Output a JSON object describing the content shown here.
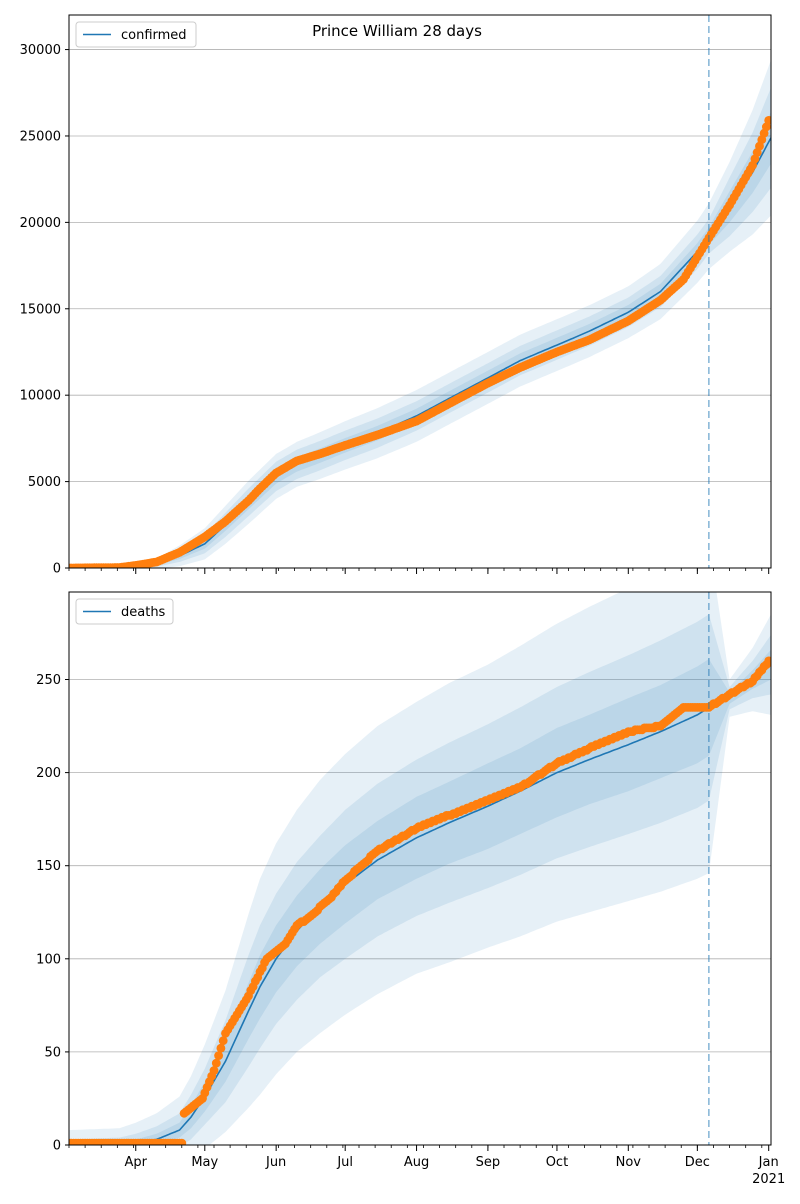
{
  "title": "Prince William 28 days",
  "year_label": "2021",
  "month_labels": [
    "Apr",
    "May",
    "Jun",
    "Jul",
    "Aug",
    "Sep",
    "Oct",
    "Nov",
    "Dec",
    "Jan"
  ],
  "colors": {
    "line": "#1f77b4",
    "band": "#1f77b4",
    "points": "#ff7f0e",
    "vline": "#1f77b4",
    "grid": "#b0b0b0"
  },
  "chart_data": [
    {
      "type": "line",
      "name": "confirmed",
      "legend": "confirmed",
      "legend_placement": "top-left",
      "grid": "horizontal",
      "xlim": [
        "2020-03-03",
        "2021-01-02"
      ],
      "ylim": [
        0,
        32000
      ],
      "yticks": [
        0,
        5000,
        10000,
        15000,
        20000,
        25000,
        30000
      ],
      "forecast_start": "2020-12-06",
      "model_x": [
        "2020-03-03",
        "2020-03-20",
        "2020-04-01",
        "2020-04-10",
        "2020-04-20",
        "2020-05-01",
        "2020-05-10",
        "2020-05-20",
        "2020-06-01",
        "2020-06-10",
        "2020-06-20",
        "2020-07-01",
        "2020-07-15",
        "2020-08-01",
        "2020-08-15",
        "2020-09-01",
        "2020-09-15",
        "2020-10-01",
        "2020-10-15",
        "2020-11-01",
        "2020-11-15",
        "2020-12-01",
        "2020-12-06",
        "2020-12-15",
        "2020-12-25",
        "2021-01-02"
      ],
      "model_y": [
        0,
        20,
        100,
        250,
        700,
        1400,
        2500,
        3800,
        5300,
        6000,
        6500,
        7100,
        7800,
        8800,
        9800,
        11000,
        12000,
        12900,
        13700,
        14800,
        16000,
        18300,
        19200,
        20900,
        22900,
        24900
      ],
      "band_widths": [
        [
          0,
          50,
          150,
          300,
          600,
          900,
          1100,
          1250,
          1300,
          1300,
          1350,
          1400,
          1450,
          1500,
          1500,
          1500,
          1500,
          1500,
          1500,
          1500,
          1600,
          1800,
          1900,
          2600,
          3600,
          4500
        ],
        [
          0,
          30,
          90,
          180,
          350,
          550,
          700,
          800,
          850,
          850,
          850,
          850,
          850,
          850,
          850,
          850,
          850,
          850,
          850,
          850,
          900,
          1000,
          1000,
          1700,
          2300,
          2900
        ],
        [
          0,
          15,
          40,
          90,
          180,
          280,
          350,
          400,
          420,
          420,
          420,
          420,
          420,
          420,
          420,
          420,
          420,
          420,
          420,
          420,
          450,
          500,
          500,
          900,
          1200,
          1500
        ]
      ],
      "observed_x": [
        "2020-03-03",
        "2020-03-25",
        "2020-04-01",
        "2020-04-10",
        "2020-04-20",
        "2020-05-01",
        "2020-05-10",
        "2020-05-20",
        "2020-05-25",
        "2020-06-01",
        "2020-06-10",
        "2020-06-20",
        "2020-07-01",
        "2020-07-15",
        "2020-08-01",
        "2020-08-15",
        "2020-09-01",
        "2020-09-15",
        "2020-10-01",
        "2020-10-15",
        "2020-11-01",
        "2020-11-15",
        "2020-11-25",
        "2020-12-01",
        "2020-12-06",
        "2020-12-15",
        "2020-12-25",
        "2021-01-01"
      ],
      "observed_y": [
        0,
        30,
        150,
        350,
        900,
        1800,
        2700,
        3900,
        4600,
        5500,
        6200,
        6600,
        7100,
        7700,
        8500,
        9500,
        10700,
        11600,
        12500,
        13200,
        14300,
        15500,
        16700,
        18000,
        19100,
        21000,
        23300,
        25900
      ]
    },
    {
      "type": "line",
      "name": "deaths",
      "legend": "deaths",
      "legend_placement": "top-left",
      "grid": "horizontal",
      "xlim": [
        "2020-03-03",
        "2021-01-02"
      ],
      "ylim": [
        0,
        297
      ],
      "yticks": [
        0,
        50,
        100,
        150,
        200,
        250
      ],
      "forecast_start": "2020-12-06",
      "model_x": [
        "2020-03-03",
        "2020-03-25",
        "2020-04-01",
        "2020-04-10",
        "2020-04-20",
        "2020-04-25",
        "2020-05-01",
        "2020-05-10",
        "2020-05-20",
        "2020-05-25",
        "2020-06-01",
        "2020-06-10",
        "2020-06-20",
        "2020-07-01",
        "2020-07-15",
        "2020-08-01",
        "2020-08-15",
        "2020-09-01",
        "2020-09-15",
        "2020-10-01",
        "2020-10-15",
        "2020-11-01",
        "2020-11-15",
        "2020-12-01",
        "2020-12-06",
        "2020-12-15",
        "2020-12-25",
        "2021-01-02"
      ],
      "model_y": [
        0,
        0,
        1,
        3,
        8,
        15,
        26,
        45,
        72,
        85,
        100,
        115,
        128,
        140,
        153,
        165,
        173,
        182,
        190,
        200,
        207,
        215,
        222,
        231,
        235,
        240,
        250,
        258
      ],
      "band_widths": [
        [
          8,
          9,
          11,
          14,
          18,
          22,
          28,
          38,
          52,
          58,
          62,
          65,
          68,
          70,
          72,
          73,
          75,
          76,
          78,
          80,
          82,
          84,
          86,
          88,
          89,
          10,
          17,
          27
        ],
        [
          3,
          4,
          5,
          7,
          9,
          12,
          15,
          22,
          30,
          33,
          35,
          37,
          38,
          40,
          41,
          42,
          43,
          44,
          45,
          46,
          47,
          48,
          49,
          50,
          50,
          6,
          10,
          16
        ],
        [
          1,
          2,
          2,
          3,
          4,
          6,
          8,
          11,
          15,
          17,
          18,
          19,
          20,
          21,
          21,
          22,
          22,
          23,
          23,
          24,
          24,
          25,
          25,
          26,
          26,
          3,
          5,
          8
        ]
      ],
      "observed_x": [
        "2020-03-03",
        "2020-03-28",
        "2020-04-15",
        "2020-04-21",
        "2020-04-22",
        "2020-04-30",
        "2020-05-05",
        "2020-05-10",
        "2020-05-15",
        "2020-05-20",
        "2020-05-28",
        "2020-06-05",
        "2020-06-10",
        "2020-06-15",
        "2020-06-25",
        "2020-07-01",
        "2020-07-15",
        "2020-08-01",
        "2020-08-15",
        "2020-09-01",
        "2020-09-15",
        "2020-10-01",
        "2020-10-15",
        "2020-11-01",
        "2020-11-15",
        "2020-11-25",
        "2020-12-06",
        "2020-12-15",
        "2020-12-25",
        "2021-01-01"
      ],
      "observed_y": [
        1,
        1,
        1,
        1,
        17,
        25,
        40,
        60,
        70,
        80,
        100,
        108,
        118,
        122,
        133,
        142,
        158,
        170,
        177,
        185,
        192,
        205,
        213,
        222,
        225,
        235,
        235,
        242,
        249,
        260
      ]
    }
  ]
}
